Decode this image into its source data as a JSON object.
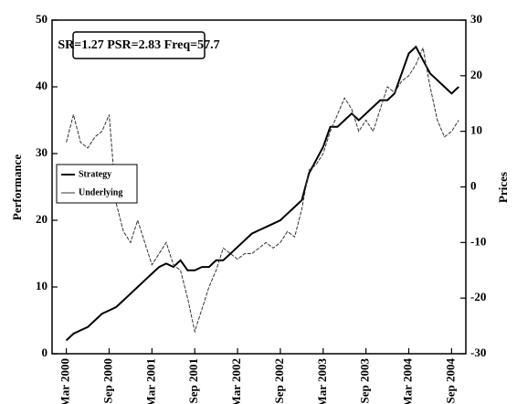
{
  "chart_data": {
    "type": "line",
    "annotation": "SR=1.27 PSR=2.83 Freq=57.7",
    "y_label": "Performance",
    "y2_label": "Prices",
    "x": [
      "2000-03",
      "2000-04",
      "2000-05",
      "2000-06",
      "2000-07",
      "2000-08",
      "2000-09",
      "2000-10",
      "2000-11",
      "2000-12",
      "2001-01",
      "2001-02",
      "2001-03",
      "2001-04",
      "2001-05",
      "2001-06",
      "2001-07",
      "2001-08",
      "2001-09",
      "2001-10",
      "2001-11",
      "2001-12",
      "2002-01",
      "2002-02",
      "2002-03",
      "2002-04",
      "2002-05",
      "2002-06",
      "2002-07",
      "2002-08",
      "2002-09",
      "2002-10",
      "2002-11",
      "2002-12",
      "2003-01",
      "2003-02",
      "2003-03",
      "2003-04",
      "2003-05",
      "2003-06",
      "2003-07",
      "2003-08",
      "2003-09",
      "2003-10",
      "2003-11",
      "2003-12",
      "2004-01",
      "2004-02",
      "2004-03",
      "2004-04",
      "2004-05",
      "2004-06",
      "2004-07",
      "2004-08",
      "2004-09",
      "2004-10"
    ],
    "series": [
      {
        "name": "Strategy",
        "color": "#000000",
        "values": [
          2,
          3,
          3.5,
          4,
          5,
          6,
          6.5,
          7,
          8,
          9,
          10,
          11,
          12,
          13,
          13.5,
          13,
          14,
          12.5,
          12.5,
          13,
          13,
          14,
          14,
          15,
          16,
          17,
          18,
          18.5,
          19,
          19.5,
          20,
          21,
          22,
          23,
          27,
          29,
          31,
          34,
          34,
          35,
          36,
          35,
          36,
          37,
          38,
          38,
          39,
          42,
          45,
          46,
          44,
          42,
          41,
          40,
          39,
          40
        ]
      },
      {
        "name": "Underlying",
        "color": "#333333",
        "axis": "y2",
        "values": [
          8,
          13,
          8,
          7,
          9,
          10,
          13,
          -3,
          -8,
          -10,
          -6,
          -10,
          -14,
          -12,
          -10,
          -14,
          -15,
          -20,
          -26,
          -22,
          -18,
          -15,
          -11,
          -12,
          -13,
          -12,
          -12,
          -11,
          -10,
          -11,
          -10,
          -8,
          -9,
          -4,
          3,
          4,
          6,
          10,
          13,
          16,
          14,
          10,
          12,
          10,
          14,
          18,
          17,
          19,
          20,
          22,
          25,
          18,
          12,
          9,
          10,
          12
        ]
      }
    ],
    "xlim": [
      "2000-01",
      "2004-11"
    ],
    "xticks": [
      {
        "value": "2000-03",
        "label": "Mar 2000"
      },
      {
        "value": "2000-09",
        "label": "Sep 2000"
      },
      {
        "value": "2001-03",
        "label": "Mar 2001"
      },
      {
        "value": "2001-09",
        "label": "Sep 2001"
      },
      {
        "value": "2002-03",
        "label": "Mar 2002"
      },
      {
        "value": "2002-09",
        "label": "Sep 2002"
      },
      {
        "value": "2003-03",
        "label": "Mar 2003"
      },
      {
        "value": "2003-09",
        "label": "Sep 2003"
      },
      {
        "value": "2004-03",
        "label": "Mar 2004"
      },
      {
        "value": "2004-09",
        "label": "Sep 2004"
      }
    ],
    "ylim": [
      0,
      50
    ],
    "yticks": [
      0,
      10,
      20,
      30,
      40,
      50
    ],
    "y2lim": [
      -30,
      30
    ],
    "y2ticks": [
      -30,
      -20,
      -10,
      0,
      10,
      20,
      30
    ],
    "legend": "left"
  }
}
